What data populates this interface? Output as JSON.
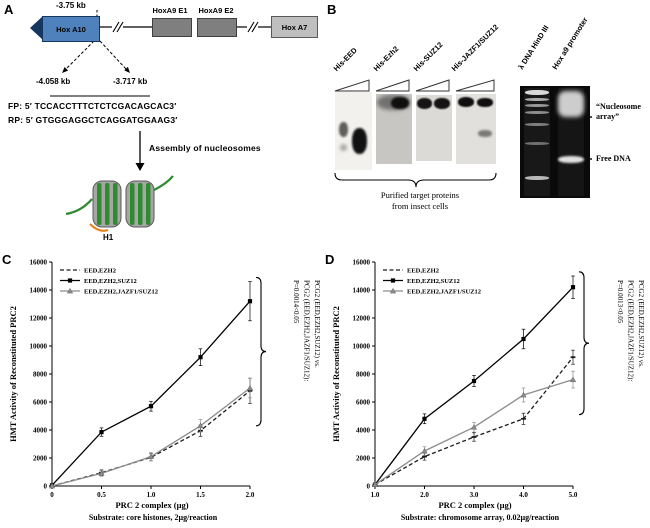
{
  "panelA": {
    "label": "A",
    "kb_top": "-3.75 kb",
    "kb_left": "-4.058 kb",
    "kb_right": "-3.717 kb",
    "gene_hoxa10": "Hox A10",
    "gene_e1": "HoxA9 E1",
    "gene_e2": "HoxA9 E2",
    "gene_hoxa7": "Hox A7",
    "fp": "FP: 5′ TCCACCTTTCTCTCGACAGCAC3′",
    "rp": "RP: 5′ GTGGGAGGCTCAGGATGGAAG3′",
    "assembly_label": "Assembly of nucleosomes",
    "h1_label": "H1"
  },
  "panelB": {
    "label": "B",
    "blot_labels": [
      "His-EED",
      "His-Ezh2",
      "His-SUZ12",
      "His-JAZF1/SUZ12"
    ],
    "caption": "Purified target proteins\nfrom insect cells",
    "gel_label_ladder": "λ DNA HinD III",
    "gel_label_promoter": "Hox a9 promoter",
    "annotation_array": "“Nucleosome\narray”",
    "annotation_free_dna": "Free DNA"
  },
  "chart_data": [
    {
      "panel_label": "C",
      "type": "line",
      "xlabel": "PRC 2 complex (µg)",
      "ylabel": "HMT Activity of Reconstituted PRC2",
      "substrate": "Substrate: core histones, 2µg/reaction",
      "pvalue": "PCG2 (EED,EZH2,SUZ12) vs.\nPCG2 (EED,EZH2,JAZF1/SUZ12):\nP=0.0014<0.05",
      "x": [
        0,
        0.5,
        1.0,
        1.5,
        2.0
      ],
      "xticks": [
        "0",
        "0.5",
        "1.0",
        "1.5",
        "2.0"
      ],
      "ylim": [
        0,
        16000
      ],
      "ytick_step": 2000,
      "legend_position": "top-left",
      "grid": false,
      "series": [
        {
          "name": "EED,EZH2",
          "line": "dashed",
          "color": "#1a1a1a",
          "marker": "dash",
          "values": [
            0,
            950,
            2050,
            3950,
            6800
          ],
          "err": [
            80,
            200,
            250,
            400,
            900
          ]
        },
        {
          "name": "EED,EZH2,SUZ12",
          "line": "solid",
          "color": "#000000",
          "marker": "square",
          "values": [
            50,
            3850,
            5700,
            9200,
            13200
          ],
          "err": [
            80,
            300,
            350,
            600,
            1400
          ]
        },
        {
          "name": "EED,EZH2,JAZF1/SUZ12",
          "line": "solid",
          "color": "#8c8c8c",
          "marker": "triangle",
          "values": [
            0,
            900,
            2100,
            4300,
            7000
          ],
          "err": [
            80,
            200,
            300,
            450,
            700
          ]
        }
      ]
    },
    {
      "panel_label": "D",
      "type": "line",
      "xlabel": "PRC 2 complex (µg)",
      "ylabel": "HMT Activity of Reconstituted PRC2",
      "substrate": "Substrate: chromosome array, 0.02µg/reaction",
      "pvalue": "PCG2 (EED,EZH2,SUZ12) vs.\nPCG2 (EED,EZH2,JAZF1/SUZ12):\nP=0.0013<0.05",
      "x": [
        1.0,
        2.0,
        3.0,
        4.0,
        5.0
      ],
      "xticks": [
        "1.0",
        "2.0",
        "3.0",
        "4.0",
        "5.0"
      ],
      "ylim": [
        0,
        16000
      ],
      "ytick_step": 2000,
      "legend_position": "top-left",
      "grid": false,
      "series": [
        {
          "name": "EED,EZH2",
          "line": "dashed",
          "color": "#1a1a1a",
          "marker": "dash",
          "values": [
            100,
            2100,
            3500,
            4800,
            9200
          ],
          "err": [
            80,
            250,
            300,
            400,
            500
          ]
        },
        {
          "name": "EED,EZH2,SUZ12",
          "line": "solid",
          "color": "#000000",
          "marker": "square",
          "values": [
            100,
            4800,
            7500,
            10500,
            14200
          ],
          "err": [
            80,
            350,
            400,
            700,
            800
          ]
        },
        {
          "name": "EED,EZH2,JAZF1/SUZ12",
          "line": "solid",
          "color": "#8c8c8c",
          "marker": "triangle",
          "values": [
            100,
            2500,
            4200,
            6500,
            7600
          ],
          "err": [
            80,
            300,
            350,
            500,
            600
          ]
        }
      ]
    }
  ]
}
